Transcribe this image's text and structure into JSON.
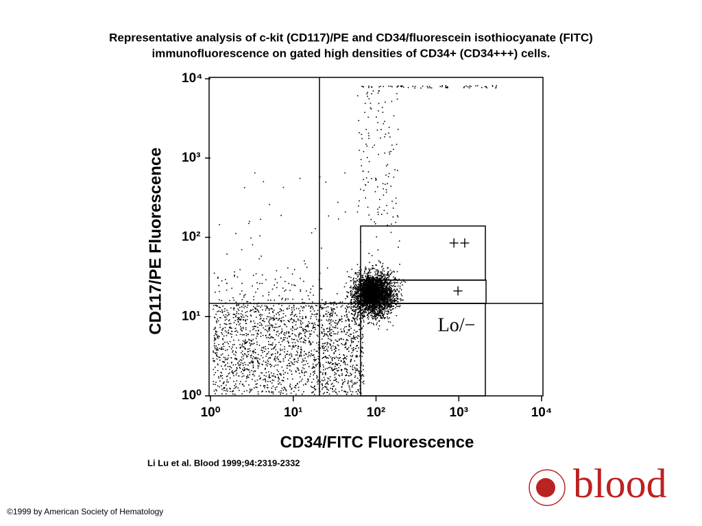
{
  "chart_data": {
    "type": "scatter",
    "title": "Representative analysis of c-kit (CD117)/PE and CD34/fluorescein isothiocyanate (FITC)",
    "subtitle": "immunofluorescence on gated high densities of CD34+ (CD34+++) cells.",
    "x_label": "CD34/FITC Fluorescence",
    "y_label": "CD117/PE Fluorescence",
    "log_scale": true,
    "xlim": [
      1,
      10000
    ],
    "ylim": [
      1,
      10000
    ],
    "xticks": [
      {
        "value": 1,
        "label": "10⁰"
      },
      {
        "value": 10,
        "label": "10¹"
      },
      {
        "value": 100,
        "label": "10²"
      },
      {
        "value": 1000,
        "label": "10³"
      },
      {
        "value": 10000,
        "label": "10⁴"
      }
    ],
    "yticks": [
      {
        "value": 1,
        "label": "10⁰"
      },
      {
        "value": 10,
        "label": "10¹"
      },
      {
        "value": 100,
        "label": "10²"
      },
      {
        "value": 1000,
        "label": "10³"
      },
      {
        "value": 10000,
        "label": "10⁴"
      }
    ],
    "annotations": [
      "++",
      "+",
      "Lo/−"
    ],
    "citation": "Li Lu et al. Blood 1999;94:2319-2332"
  },
  "footer": {
    "copyright": "©1999 by American Society of Hematology",
    "logo": "blood"
  }
}
